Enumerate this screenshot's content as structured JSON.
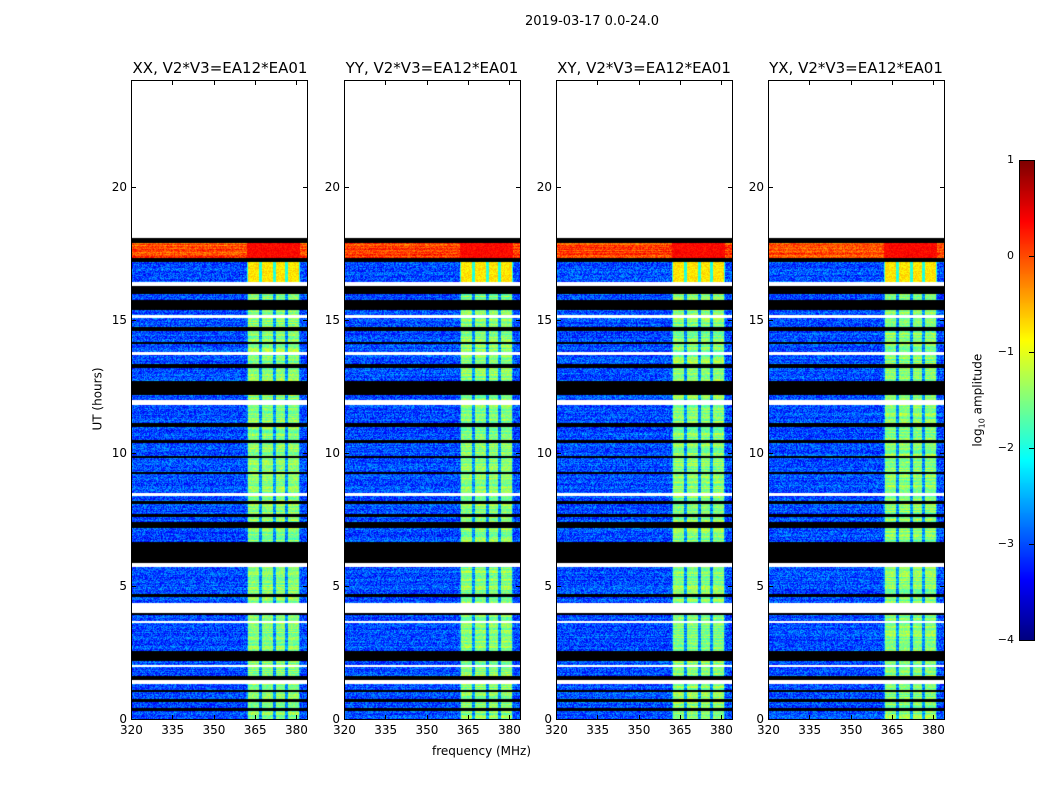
{
  "chart_data": {
    "type": "heatmap",
    "title": "2019-03-17 0.0-24.0",
    "xlabel": "frequency (MHz)",
    "ylabel": "UT (hours)",
    "xlim": [
      320,
      384
    ],
    "ylim": [
      0,
      24
    ],
    "xticks": [
      320,
      335,
      350,
      365,
      380
    ],
    "yticks": [
      0,
      5,
      10,
      15,
      20
    ],
    "panels": [
      {
        "title": "XX, V2*V3=EA12*EA01"
      },
      {
        "title": "YY, V2*V3=EA12*EA01"
      },
      {
        "title": "XY, V2*V3=EA12*EA01"
      },
      {
        "title": "YX, V2*V3=EA12*EA01"
      }
    ],
    "colorbar": {
      "label_main": "log",
      "label_sub": "10",
      "label_rest": " amplitude",
      "range": [
        -4,
        1
      ],
      "ticks": [
        1,
        0,
        -1,
        -2,
        -3,
        -4
      ],
      "tick_labels": [
        "1",
        "0",
        "−1",
        "−2",
        "−3",
        "−4"
      ],
      "colormap": "jet"
    },
    "background_level": -3.0,
    "bright_band_mhz": [
      362,
      381.5
    ],
    "subband_edges_mhz": [
      362,
      367,
      372,
      376.5,
      381.5
    ],
    "segments": [
      {
        "h": [
          0.0,
          0.3
        ],
        "kind": "data"
      },
      {
        "h": [
          0.3,
          0.4
        ],
        "kind": "flag"
      },
      {
        "h": [
          0.4,
          0.65
        ],
        "kind": "data"
      },
      {
        "h": [
          0.65,
          0.75
        ],
        "kind": "flag"
      },
      {
        "h": [
          0.75,
          1.0
        ],
        "kind": "data"
      },
      {
        "h": [
          1.0,
          1.1
        ],
        "kind": "flag"
      },
      {
        "h": [
          1.1,
          1.3
        ],
        "kind": "data"
      },
      {
        "h": [
          1.3,
          1.45
        ],
        "kind": "gap"
      },
      {
        "h": [
          1.45,
          1.6
        ],
        "kind": "flag"
      },
      {
        "h": [
          1.6,
          1.95
        ],
        "kind": "data"
      },
      {
        "h": [
          1.95,
          2.05
        ],
        "kind": "gap"
      },
      {
        "h": [
          2.05,
          2.2
        ],
        "kind": "data"
      },
      {
        "h": [
          2.2,
          2.55
        ],
        "kind": "flag"
      },
      {
        "h": [
          2.55,
          3.6
        ],
        "kind": "data"
      },
      {
        "h": [
          3.6,
          3.7
        ],
        "kind": "gap"
      },
      {
        "h": [
          3.7,
          3.9
        ],
        "kind": "data"
      },
      {
        "h": [
          3.9,
          4.0
        ],
        "kind": "flag"
      },
      {
        "h": [
          4.0,
          4.35
        ],
        "kind": "gap"
      },
      {
        "h": [
          4.35,
          4.6
        ],
        "kind": "data"
      },
      {
        "h": [
          4.6,
          4.7
        ],
        "kind": "flag"
      },
      {
        "h": [
          4.7,
          5.7
        ],
        "kind": "data"
      },
      {
        "h": [
          5.7,
          5.85
        ],
        "kind": "gap"
      },
      {
        "h": [
          5.85,
          6.65
        ],
        "kind": "flag"
      },
      {
        "h": [
          6.65,
          7.2
        ],
        "kind": "data"
      },
      {
        "h": [
          7.2,
          7.4
        ],
        "kind": "flag"
      },
      {
        "h": [
          7.4,
          7.6
        ],
        "kind": "data"
      },
      {
        "h": [
          7.6,
          7.7
        ],
        "kind": "flag"
      },
      {
        "h": [
          7.7,
          8.1
        ],
        "kind": "data"
      },
      {
        "h": [
          8.1,
          8.2
        ],
        "kind": "flag"
      },
      {
        "h": [
          8.2,
          8.4
        ],
        "kind": "data"
      },
      {
        "h": [
          8.4,
          8.5
        ],
        "kind": "gap"
      },
      {
        "h": [
          8.5,
          9.2
        ],
        "kind": "data"
      },
      {
        "h": [
          9.2,
          9.3
        ],
        "kind": "flag"
      },
      {
        "h": [
          9.3,
          9.8
        ],
        "kind": "data"
      },
      {
        "h": [
          9.8,
          9.9
        ],
        "kind": "flag"
      },
      {
        "h": [
          9.9,
          10.4
        ],
        "kind": "data"
      },
      {
        "h": [
          10.4,
          10.5
        ],
        "kind": "flag"
      },
      {
        "h": [
          10.5,
          11.0
        ],
        "kind": "data"
      },
      {
        "h": [
          11.0,
          11.15
        ],
        "kind": "flag"
      },
      {
        "h": [
          11.15,
          11.8
        ],
        "kind": "data"
      },
      {
        "h": [
          11.8,
          12.0
        ],
        "kind": "gap"
      },
      {
        "h": [
          12.0,
          12.2
        ],
        "kind": "data"
      },
      {
        "h": [
          12.2,
          12.7
        ],
        "kind": "flag"
      },
      {
        "h": [
          12.7,
          13.2
        ],
        "kind": "data"
      },
      {
        "h": [
          13.2,
          13.35
        ],
        "kind": "flag"
      },
      {
        "h": [
          13.35,
          13.7
        ],
        "kind": "data"
      },
      {
        "h": [
          13.7,
          13.8
        ],
        "kind": "gap"
      },
      {
        "h": [
          13.8,
          14.1
        ],
        "kind": "data"
      },
      {
        "h": [
          14.1,
          14.2
        ],
        "kind": "flag"
      },
      {
        "h": [
          14.2,
          14.6
        ],
        "kind": "data"
      },
      {
        "h": [
          14.6,
          14.75
        ],
        "kind": "flag"
      },
      {
        "h": [
          14.75,
          15.1
        ],
        "kind": "data"
      },
      {
        "h": [
          15.1,
          15.2
        ],
        "kind": "gap"
      },
      {
        "h": [
          15.2,
          15.4
        ],
        "kind": "data"
      },
      {
        "h": [
          15.4,
          15.75
        ],
        "kind": "flag"
      },
      {
        "h": [
          15.75,
          16.0
        ],
        "kind": "data"
      },
      {
        "h": [
          16.0,
          16.3
        ],
        "kind": "flag"
      },
      {
        "h": [
          16.3,
          16.45
        ],
        "kind": "gap"
      },
      {
        "h": [
          16.45,
          17.2
        ],
        "kind": "bright"
      },
      {
        "h": [
          17.2,
          17.35
        ],
        "kind": "flag"
      },
      {
        "h": [
          17.35,
          17.9
        ],
        "kind": "hot"
      },
      {
        "h": [
          17.9,
          18.1
        ],
        "kind": "flag"
      },
      {
        "h": [
          18.1,
          24.0
        ],
        "kind": "gap"
      }
    ]
  }
}
